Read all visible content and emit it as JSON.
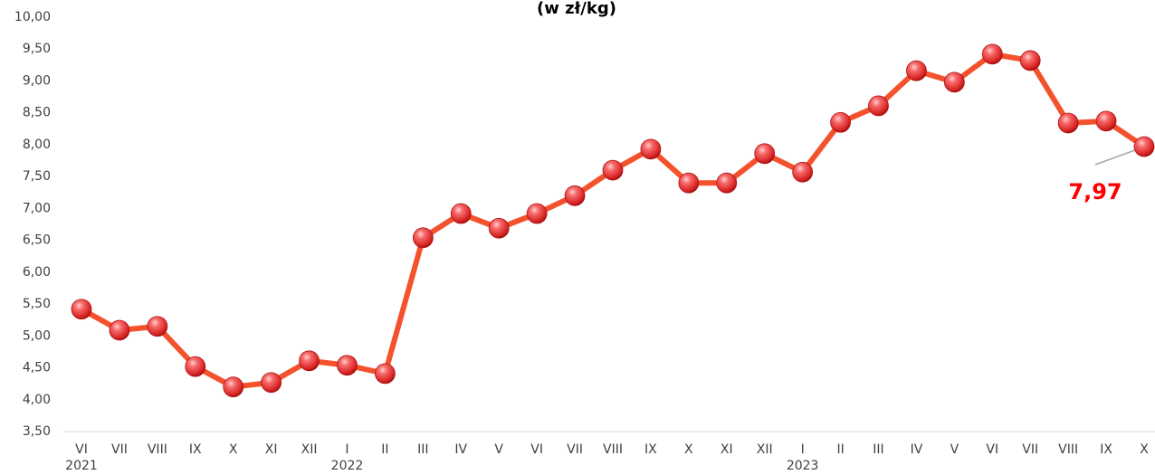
{
  "chart_data": {
    "type": "line",
    "title": "(w zł/kg)",
    "categories": [
      "VI",
      "VII",
      "VIII",
      "IX",
      "X",
      "XI",
      "XII",
      "I",
      "II",
      "III",
      "IV",
      "V",
      "VI",
      "VII",
      "VIII",
      "IX",
      "X",
      "XI",
      "XII",
      "I",
      "II",
      "III",
      "IV",
      "V",
      "VI",
      "VII",
      "VIII",
      "IX",
      "X"
    ],
    "category_years": [
      "2021",
      null,
      null,
      null,
      null,
      null,
      null,
      "2022",
      null,
      null,
      null,
      null,
      null,
      null,
      null,
      null,
      null,
      null,
      null,
      "2023",
      null,
      null,
      null,
      null,
      null,
      null,
      null,
      null,
      null
    ],
    "values": [
      5.42,
      5.09,
      5.15,
      4.52,
      4.2,
      4.27,
      4.61,
      4.54,
      4.41,
      6.54,
      6.92,
      6.69,
      6.92,
      7.2,
      7.6,
      7.93,
      7.4,
      7.4,
      7.86,
      7.57,
      8.35,
      8.61,
      9.16,
      8.98,
      9.42,
      9.32,
      8.34,
      8.37,
      7.97
    ],
    "value_labels": [
      null,
      null,
      null,
      null,
      null,
      null,
      null,
      null,
      null,
      null,
      null,
      null,
      null,
      null,
      null,
      null,
      null,
      null,
      null,
      null,
      null,
      null,
      null,
      null,
      null,
      null,
      null,
      null,
      "7,97"
    ],
    "color": "#f4522d",
    "ylim": [
      3.5,
      10
    ],
    "yticks": [
      {
        "value": 3.5,
        "label": "3,50"
      },
      {
        "value": 4,
        "label": "4,00"
      },
      {
        "value": 4.5,
        "label": "4,50"
      },
      {
        "value": 5,
        "label": "5,00"
      },
      {
        "value": 5.5,
        "label": "5,50"
      },
      {
        "value": 6,
        "label": "6,00"
      },
      {
        "value": 6.5,
        "label": "6,50"
      },
      {
        "value": 7,
        "label": "7,00"
      },
      {
        "value": 7.5,
        "label": "7,50"
      },
      {
        "value": 8,
        "label": "8,00"
      },
      {
        "value": 8.5,
        "label": "8,50"
      },
      {
        "value": 9,
        "label": "9,00"
      },
      {
        "value": 9.5,
        "label": "9,50"
      },
      {
        "value": 10,
        "label": "10,00"
      }
    ],
    "grid": false
  }
}
